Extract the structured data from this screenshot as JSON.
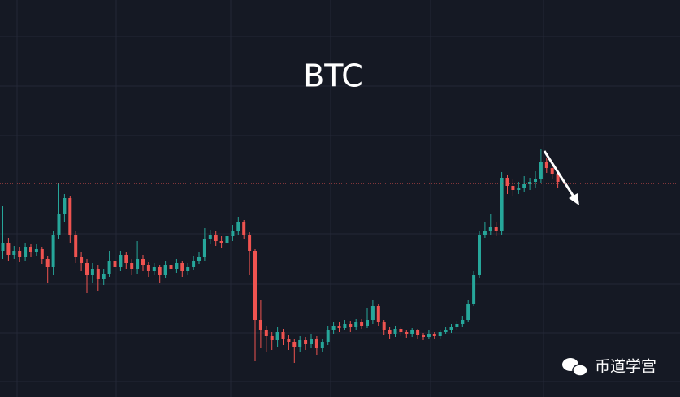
{
  "chart_data": {
    "type": "candlestick",
    "title": "BTC",
    "watermark": "币道学宫",
    "ylim": [
      0,
      489
    ],
    "price_line": 263,
    "up_color": "#26a69a",
    "down_color": "#ef5350",
    "price_line_color": "#ef5350",
    "open": [
      180,
      190,
      175,
      180,
      172,
      185,
      178,
      182,
      170,
      160,
      200,
      225,
      245,
      200,
      172,
      165,
      150,
      158,
      145,
      152,
      168,
      160,
      175,
      165,
      158,
      170,
      162,
      155,
      160,
      150,
      162,
      158,
      165,
      155,
      160,
      168,
      172,
      195,
      200,
      192,
      190,
      198,
      205,
      215,
      200,
      180,
      95,
      82,
      75,
      70,
      80,
      72,
      68,
      62,
      70,
      65,
      72,
      60,
      68,
      82,
      88,
      85,
      90,
      86,
      92,
      88,
      95,
      112,
      92,
      82,
      78,
      84,
      80,
      78,
      82,
      76,
      74,
      78,
      75,
      80,
      82,
      86,
      90,
      95,
      115,
      150,
      200,
      205,
      210,
      205,
      270,
      260,
      255,
      258,
      262,
      265,
      268,
      290,
      282,
      275
    ],
    "high": [
      235,
      196,
      186,
      185,
      190,
      189,
      188,
      185,
      174,
      205,
      263,
      250,
      248,
      205,
      178,
      170,
      165,
      162,
      158,
      180,
      172,
      180,
      178,
      170,
      192,
      175,
      166,
      165,
      163,
      168,
      166,
      170,
      168,
      165,
      174,
      178,
      208,
      206,
      205,
      198,
      204,
      212,
      222,
      218,
      203,
      182,
      120,
      88,
      80,
      86,
      84,
      76,
      72,
      75,
      74,
      78,
      75,
      72,
      88,
      92,
      92,
      95,
      93,
      96,
      96,
      110,
      120,
      114,
      95,
      86,
      88,
      86,
      83,
      85,
      84,
      79,
      82,
      80,
      83,
      86,
      90,
      94,
      100,
      120,
      155,
      205,
      215,
      225,
      215,
      277,
      274,
      268,
      265,
      272,
      270,
      278,
      305,
      295,
      286,
      278
    ],
    "low": [
      170,
      168,
      170,
      166,
      168,
      172,
      174,
      164,
      140,
      150,
      195,
      215,
      190,
      165,
      155,
      128,
      140,
      130,
      138,
      148,
      150,
      155,
      158,
      150,
      152,
      155,
      148,
      150,
      140,
      146,
      152,
      153,
      148,
      150,
      156,
      164,
      168,
      188,
      186,
      184,
      186,
      192,
      200,
      195,
      150,
      44,
      60,
      55,
      58,
      62,
      64,
      58,
      42,
      55,
      58,
      60,
      52,
      55,
      64,
      78,
      80,
      82,
      80,
      82,
      84,
      85,
      90,
      88,
      76,
      72,
      74,
      75,
      73,
      74,
      71,
      70,
      71,
      72,
      72,
      77,
      79,
      83,
      86,
      92,
      112,
      146,
      196,
      200,
      198,
      200,
      250,
      248,
      250,
      252,
      255,
      258,
      264,
      276,
      268,
      258
    ],
    "close": [
      190,
      175,
      180,
      172,
      185,
      178,
      182,
      170,
      160,
      200,
      225,
      245,
      200,
      172,
      165,
      150,
      158,
      145,
      152,
      168,
      160,
      175,
      165,
      158,
      170,
      162,
      155,
      160,
      150,
      162,
      158,
      165,
      155,
      160,
      168,
      172,
      195,
      200,
      192,
      190,
      198,
      205,
      215,
      200,
      180,
      95,
      82,
      75,
      70,
      80,
      72,
      68,
      62,
      70,
      65,
      72,
      60,
      68,
      82,
      88,
      85,
      90,
      86,
      92,
      88,
      95,
      112,
      92,
      82,
      78,
      84,
      80,
      78,
      82,
      76,
      74,
      78,
      75,
      80,
      82,
      86,
      90,
      95,
      115,
      150,
      200,
      205,
      210,
      205,
      270,
      260,
      255,
      258,
      262,
      265,
      268,
      290,
      282,
      275,
      265
    ]
  }
}
